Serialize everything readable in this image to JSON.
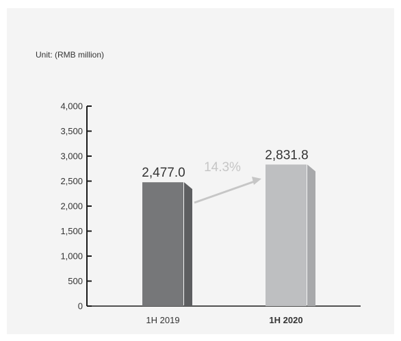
{
  "chart_data": {
    "type": "bar",
    "unit_label": "Unit: (RMB million)",
    "categories": [
      "1H 2019",
      "1H 2020"
    ],
    "values": [
      2477.0,
      2831.8
    ],
    "value_labels": [
      "2,477.0",
      "2,831.8"
    ],
    "yticks": [
      0,
      500,
      1000,
      1500,
      2000,
      2500,
      3000,
      3500,
      4000
    ],
    "ytick_labels": [
      "0",
      "500",
      "1,000",
      "1,500",
      "2,000",
      "2,500",
      "3,000",
      "3,500",
      "4,000"
    ],
    "ylim": [
      0,
      4000
    ],
    "growth_label": "14.3%",
    "highlight_category": "1H 2020",
    "colors": {
      "bar_2019_front": "#767779",
      "bar_2019_side": "#5d5e60",
      "bar_2020_front": "#bebfc1",
      "bar_2020_side": "#a8a9ab",
      "growth": "#c6c6c6",
      "axis": "#1a1a1a",
      "background": "#f4f4f4"
    }
  }
}
